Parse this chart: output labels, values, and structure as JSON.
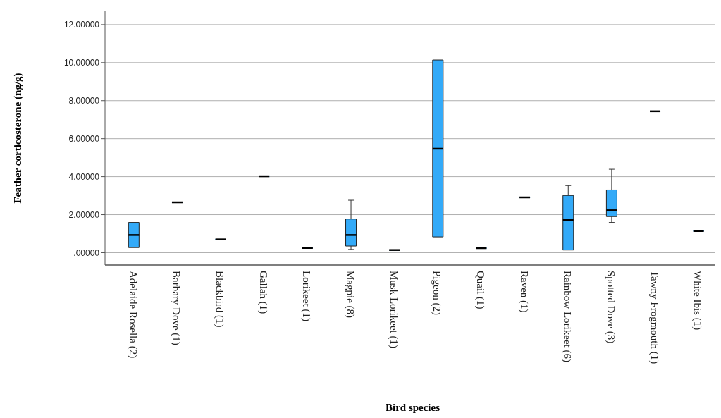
{
  "chart_data": {
    "type": "box",
    "xlabel": "Bird species",
    "ylabel": "Feather corticosterone (ng/g)",
    "categories": [
      "Adelaide Rosella (2)",
      "Barbary Dove (1)",
      "Blackbird (1)",
      "Gallah (1)",
      "Lorikeet (1)",
      "Magpie (8)",
      "Musk Lorikeet (1)",
      "Pigeon (2)",
      "Quail (1)",
      "Raven (1)",
      "Rainbow Lorikeet (6)",
      "Spotted Dove (3)",
      "Tawny Frogmouth (1)",
      "White Ibis (1)"
    ],
    "boxes": [
      {
        "low": 0.27,
        "q1": 0.27,
        "median": 0.93,
        "q3": 1.59,
        "high": 1.59
      },
      {
        "low": 2.65,
        "q1": 2.65,
        "median": 2.65,
        "q3": 2.65,
        "high": 2.65
      },
      {
        "low": 0.7,
        "q1": 0.7,
        "median": 0.7,
        "q3": 0.7,
        "high": 0.7
      },
      {
        "low": 4.02,
        "q1": 4.02,
        "median": 4.02,
        "q3": 4.02,
        "high": 4.02
      },
      {
        "low": 0.25,
        "q1": 0.25,
        "median": 0.25,
        "q3": 0.25,
        "high": 0.25
      },
      {
        "low": 0.17,
        "q1": 0.35,
        "median": 0.93,
        "q3": 1.77,
        "high": 2.76
      },
      {
        "low": 0.14,
        "q1": 0.14,
        "median": 0.14,
        "q3": 0.14,
        "high": 0.14
      },
      {
        "low": 0.83,
        "q1": 0.83,
        "median": 5.47,
        "q3": 10.14,
        "high": 10.14
      },
      {
        "low": 0.24,
        "q1": 0.24,
        "median": 0.24,
        "q3": 0.24,
        "high": 0.24
      },
      {
        "low": 2.91,
        "q1": 2.91,
        "median": 2.91,
        "q3": 2.91,
        "high": 2.91
      },
      {
        "low": 0.14,
        "q1": 0.14,
        "median": 1.72,
        "q3": 3.01,
        "high": 3.53
      },
      {
        "low": 1.59,
        "q1": 1.9,
        "median": 2.23,
        "q3": 3.3,
        "high": 4.39
      },
      {
        "low": 7.44,
        "q1": 7.44,
        "median": 7.44,
        "q3": 7.44,
        "high": 7.44
      },
      {
        "low": 1.14,
        "q1": 1.14,
        "median": 1.14,
        "q3": 1.14,
        "high": 1.14
      }
    ],
    "color": "#33aaf8",
    "ylim": [
      -0.65,
      12.7
    ],
    "yticks": [
      {
        "value": 0,
        "label": ".00000"
      },
      {
        "value": 2,
        "label": "2.00000"
      },
      {
        "value": 4,
        "label": "4.00000"
      },
      {
        "value": 6,
        "label": "6.00000"
      },
      {
        "value": 8,
        "label": "8.00000"
      },
      {
        "value": 10,
        "label": "10.00000"
      },
      {
        "value": 12,
        "label": "12.00000"
      }
    ],
    "grid": "y"
  }
}
